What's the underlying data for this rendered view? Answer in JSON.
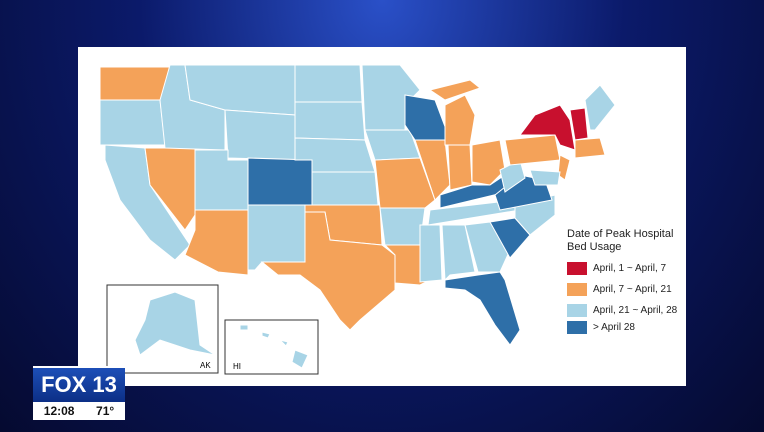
{
  "legend": {
    "title": "Date of Peak Hospital Bed Usage",
    "items": [
      {
        "label": "April, 1 ~ April, 7",
        "color": "#c8102e"
      },
      {
        "label": "April, 7 ~ April, 21",
        "color": "#f4a259"
      },
      {
        "label": "April, 21 ~ April, 28",
        "color": "#a8d4e6"
      },
      {
        "label": "> April 28",
        "color": "#2e6fa8"
      }
    ]
  },
  "insets": {
    "alaska": "AK",
    "hawaii": "HI"
  },
  "logo": {
    "brand": "FOX 13",
    "time": "12:08",
    "temperature": "71°"
  }
}
